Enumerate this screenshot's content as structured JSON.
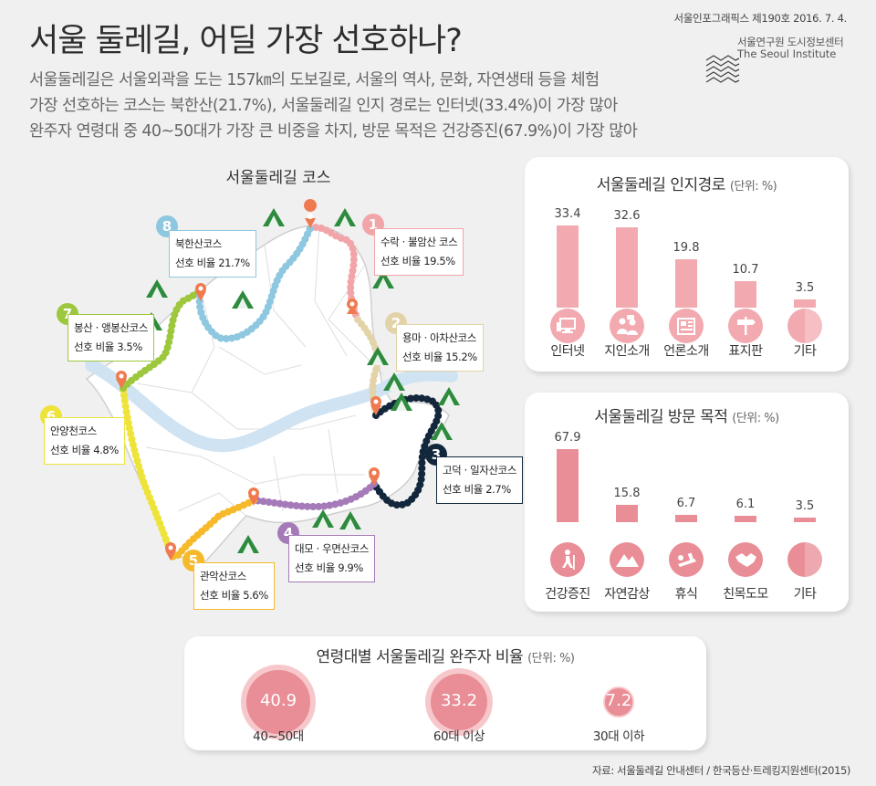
{
  "header": {
    "title": "서울 둘레길, 어딜 가장 선호하나?",
    "subtitle_lines": [
      "서울둘레길은 서울외곽을 도는 157㎞의 도보길로, 서울의 역사, 문화, 자연생태 등을 체험",
      "가장 선호하는 코스는 북한산(21.7%), 서울둘레길 인지 경로는 인터넷(33.4%)이 가장 많아",
      "완주자 연령대 중 40~50대가 가장 큰 비중을 차지, 방문 목적은 건강증진(67.9%)이 가장 많아"
    ],
    "publication": "서울인포그래픽스 제190호 2016. 7. 4.",
    "institute_ko": "서울연구원 도시정보센터",
    "institute_en": "The Seoul Institute"
  },
  "map": {
    "title": "서울둘레길 코스",
    "rate_prefix": "선호 비율",
    "courses": [
      {
        "num": "1",
        "name": "수락 · 불암산 코스",
        "rate": "19.5%",
        "color": "#f2a5a8"
      },
      {
        "num": "2",
        "name": "용마 · 아차산코스",
        "rate": "15.2%",
        "color": "#e3d3a8"
      },
      {
        "num": "3",
        "name": "고덕 · 일자산코스",
        "rate": "2.7%",
        "color": "#12273b"
      },
      {
        "num": "4",
        "name": "대모 · 우면산코스",
        "rate": "9.9%",
        "color": "#a57ab8"
      },
      {
        "num": "5",
        "name": "관악산코스",
        "rate": "5.6%",
        "color": "#f5b92a"
      },
      {
        "num": "6",
        "name": "안양천코스",
        "rate": "4.8%",
        "color": "#eee339"
      },
      {
        "num": "7",
        "name": "봉산 · 앵봉산코스",
        "rate": "3.5%",
        "color": "#9dc73c"
      },
      {
        "num": "8",
        "name": "북한산코스",
        "rate": "21.7%",
        "color": "#8ec7e0"
      }
    ]
  },
  "charts": {
    "recognition": {
      "title": "서울둘레길 인지경로",
      "unit": "(단위: %)"
    },
    "purpose": {
      "title": "서울둘레길 방문 목적",
      "unit": "(단위: %)"
    },
    "age": {
      "title": "연령대별 서울둘레길 완주자 비율",
      "unit": "(단위: %)"
    }
  },
  "chart_data": [
    {
      "type": "bar",
      "title": "서울둘레길 인지경로",
      "unit": "%",
      "categories": [
        "인터넷",
        "지인소개",
        "언론소개",
        "표지판",
        "기타"
      ],
      "values": [
        33.4,
        32.6,
        19.8,
        10.7,
        3.5
      ],
      "labels": [
        "33.4",
        "32.6",
        "19.8",
        "10.7",
        "3.5"
      ],
      "icons": [
        "computer-icon",
        "people-talking-icon",
        "newspaper-icon",
        "signpost-icon",
        "half-circle-icon"
      ],
      "color": "#f2aab0"
    },
    {
      "type": "bar",
      "title": "서울둘레길 방문 목적",
      "unit": "%",
      "categories": [
        "건강증진",
        "자연감상",
        "휴식",
        "친목도모",
        "기타"
      ],
      "values": [
        67.9,
        15.8,
        6.7,
        6.1,
        3.5
      ],
      "labels": [
        "67.9",
        "15.8",
        "6.7",
        "6.1",
        "3.5"
      ],
      "icons": [
        "hiker-icon",
        "mountain-icon",
        "resting-person-icon",
        "handshake-icon",
        "half-circle-icon"
      ],
      "color": "#e98d96"
    },
    {
      "type": "bubble",
      "title": "연령대별 서울둘레길 완주자 비율",
      "unit": "%",
      "categories": [
        "40~50대",
        "60대 이상",
        "30대 이하"
      ],
      "values": [
        40.9,
        33.2,
        7.2
      ],
      "labels": [
        "40.9",
        "33.2",
        "7.2"
      ],
      "color": "#e98d96"
    }
  ],
  "footer": {
    "source": "자료: 서울둘레길 안내센터 / 한국등산·트레킹지원센터(2015)"
  }
}
